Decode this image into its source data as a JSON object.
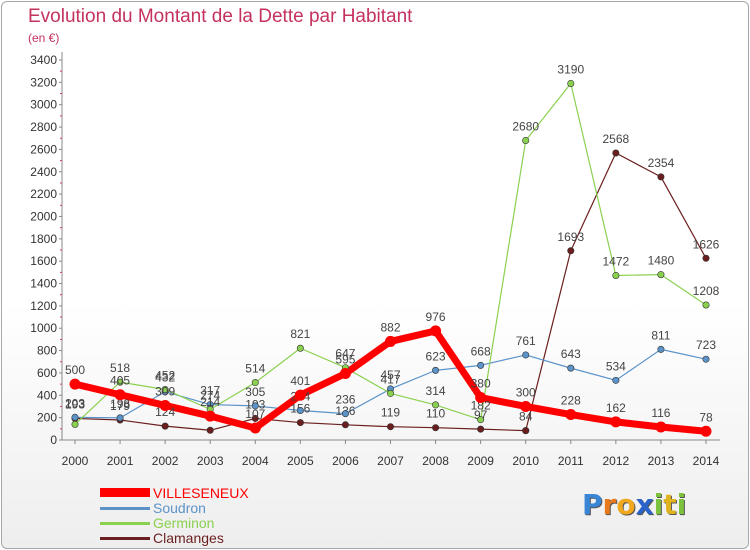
{
  "title": "Evolution du Montant de la Dette par Habitant",
  "subtitle": "(en €)",
  "logo": {
    "text": "Proxiti",
    "letters": [
      "P",
      "r",
      "o",
      "x",
      "i",
      "t",
      "i"
    ],
    "colors": [
      "#3a86d6",
      "#e87a1d",
      "#f0a81e",
      "#2a63c9",
      "#7cc23c",
      "#e0b21e",
      "#7cc23c"
    ]
  },
  "chart_data": {
    "type": "line",
    "x": [
      "2000",
      "2001",
      "2002",
      "2003",
      "2004",
      "2005",
      "2006",
      "2007",
      "2008",
      "2009",
      "2010",
      "2011",
      "2012",
      "2013",
      "2014"
    ],
    "ylim": [
      0,
      3400
    ],
    "yticks": [
      0,
      200,
      400,
      600,
      800,
      1000,
      1200,
      1400,
      1600,
      1800,
      2000,
      2200,
      2400,
      2600,
      2800,
      3000,
      3200,
      3400
    ],
    "grid": false,
    "legend_position": "bottom-left",
    "series": [
      {
        "name": "Clamanges",
        "color": "#6b1e1e",
        "width": 1.2,
        "values": [
          193,
          179,
          124,
          87,
          193,
          156,
          136,
          119,
          110,
          97,
          84,
          null,
          null,
          null,
          null
        ],
        "labels": [
          "193",
          "179",
          "124",
          "",
          "193",
          "156",
          "136",
          "119",
          "110",
          "97",
          "84",
          "",
          "",
          "",
          ""
        ]
      },
      {
        "name": "Clamanges",
        "color": "#6b1e1e",
        "width": 1.2,
        "values": [
          null,
          null,
          null,
          null,
          null,
          null,
          null,
          null,
          null,
          null,
          84,
          1693,
          2568,
          2354,
          1626
        ],
        "labels": [
          "",
          "",
          "",
          "",
          "",
          "",
          "",
          "",
          "",
          "",
          "",
          "1693",
          "2568",
          "2354",
          "1626"
        ]
      },
      {
        "name": "Soudron",
        "color": "#5b93c9",
        "width": 1.2,
        "values": [
          203,
          198,
          432,
          317,
          305,
          264,
          236,
          457,
          623,
          668,
          761,
          643,
          534,
          811,
          723
        ],
        "labels": [
          "203",
          "198",
          "432",
          "317",
          "305",
          "264",
          "236",
          "457",
          "623",
          "668",
          "761",
          "643",
          "534",
          "811",
          "723"
        ]
      },
      {
        "name": "Germinon",
        "color": "#8bd150",
        "width": 1.2,
        "values": [
          140,
          518,
          452,
          274,
          514,
          821,
          647,
          417,
          314,
          182,
          2680,
          3190,
          1472,
          1480,
          1208
        ],
        "labels": [
          "",
          "518",
          "452",
          "274",
          "514",
          "821",
          "647",
          "417",
          "314",
          "182",
          "2680",
          "3190",
          "1472",
          "1480",
          "1208"
        ]
      },
      {
        "name": "VILLESENEUX",
        "color": "#ff0000",
        "width": 7,
        "values": [
          500,
          405,
          309,
          214,
          107,
          401,
          595,
          882,
          976,
          380,
          300,
          228,
          162,
          116,
          78
        ],
        "labels": [
          "500",
          "405",
          "309",
          "214",
          "107",
          "401",
          "595",
          "882",
          "976",
          "380",
          "300",
          "228",
          "162",
          "116",
          "78"
        ]
      }
    ],
    "legend": [
      {
        "label": "VILLESENEUX",
        "color": "#ff0000",
        "thick": true
      },
      {
        "label": "Soudron",
        "color": "#5b93c9",
        "thick": false
      },
      {
        "label": "Germinon",
        "color": "#8bd150",
        "thick": false
      },
      {
        "label": "Clamanges",
        "color": "#6b1e1e",
        "thick": false
      }
    ]
  }
}
